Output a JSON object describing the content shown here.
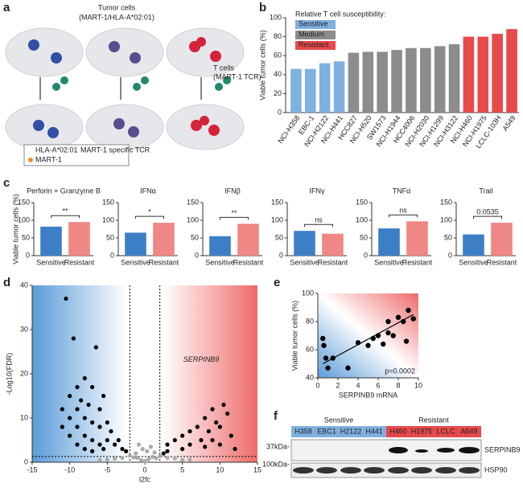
{
  "panel_labels": [
    "a",
    "b",
    "c",
    "d",
    "e",
    "f"
  ],
  "panel_a": {
    "tumor_title": "Tumor cells",
    "tumor_sub": "(MART-1/HLA-A*02:01)",
    "t_title": "T cells",
    "t_sub": "(MART-1 TCR)",
    "legend": [
      "HLA-A*02:01",
      "MART-1 specific TCR",
      "MART-1"
    ]
  },
  "panel_f": {
    "groups": [
      "Sensitive",
      "Resistant"
    ],
    "lanes": [
      "H358",
      "EBC1",
      "H2122",
      "H441",
      "H460",
      "H1975",
      "LCLC",
      "A549"
    ],
    "markers": [
      "37kDa-",
      "100kDa-"
    ],
    "proteins": [
      "SERPINB9",
      "HSP90"
    ]
  },
  "chart_data": [
    {
      "type": "bar",
      "ylabel": "Viable tumor cells (%)",
      "legend_title": "Relative T cell susceptibility:",
      "legend": "upper left",
      "categories": [
        "NCI-H358",
        "EBC-1",
        "NCI-H2122",
        "NCI-H441",
        "HCC827",
        "NCI-H520",
        "SW1573",
        "NCI-H1944",
        "HCC4006",
        "NCI-H2030",
        "NCI-H1299",
        "NCI-H3122",
        "NCI-H460",
        "NCI-H1975",
        "LCLC-103H",
        "A549"
      ],
      "series": [
        {
          "name": "Sensitive",
          "color": "#7fb0df",
          "values": [
            46,
            46,
            52,
            54,
            null,
            null,
            null,
            null,
            null,
            null,
            null,
            null,
            null,
            null,
            null,
            null
          ]
        },
        {
          "name": "Medium",
          "color": "#8c8c8c",
          "values": [
            null,
            null,
            null,
            null,
            63,
            64,
            64,
            66,
            68,
            68,
            70,
            72,
            null,
            null,
            null,
            null
          ]
        },
        {
          "name": "Resistant",
          "color": "#e8494b",
          "values": [
            null,
            null,
            null,
            null,
            null,
            null,
            null,
            null,
            null,
            null,
            null,
            null,
            80,
            80,
            83,
            88
          ]
        }
      ],
      "ylim": [
        0,
        100
      ],
      "yticks": [
        0,
        20,
        40,
        60,
        80,
        100
      ]
    },
    {
      "type": "bar",
      "title": "Perforin + Granzyme B",
      "ylabel": "Viable tumor cells (%)",
      "categories": [
        "Sensitive",
        "Resistant"
      ],
      "values": [
        82,
        95
      ],
      "colors": [
        "#3d7fc6",
        "#ef8784"
      ],
      "annotation": "**",
      "ylim": [
        0,
        150
      ],
      "yticks": [
        0,
        50,
        100,
        150
      ]
    },
    {
      "type": "bar",
      "title": "IFNα",
      "categories": [
        "Sensitive",
        "Resistant"
      ],
      "values": [
        65,
        93
      ],
      "colors": [
        "#3d7fc6",
        "#ef8784"
      ],
      "annotation": "*",
      "ylim": [
        0,
        150
      ],
      "yticks": [
        0,
        50,
        100,
        150
      ]
    },
    {
      "type": "bar",
      "title": "IFNβ",
      "categories": [
        "Sensitive",
        "Resistant"
      ],
      "values": [
        55,
        90
      ],
      "colors": [
        "#3d7fc6",
        "#ef8784"
      ],
      "annotation": "**",
      "ylim": [
        0,
        150
      ],
      "yticks": [
        0,
        50,
        100,
        150
      ]
    },
    {
      "type": "bar",
      "title": "IFNγ",
      "categories": [
        "Sensitive",
        "Resistant"
      ],
      "values": [
        70,
        62
      ],
      "colors": [
        "#3d7fc6",
        "#ef8784"
      ],
      "annotation": "ns",
      "ylim": [
        0,
        150
      ],
      "yticks": [
        0,
        50,
        100,
        150
      ]
    },
    {
      "type": "bar",
      "title": "TNFα",
      "categories": [
        "Sensitive",
        "Resistant"
      ],
      "values": [
        77,
        97
      ],
      "colors": [
        "#3d7fc6",
        "#ef8784"
      ],
      "annotation": "ns",
      "ylim": [
        0,
        150
      ],
      "yticks": [
        0,
        50,
        100,
        150
      ]
    },
    {
      "type": "bar",
      "title": "Trail",
      "categories": [
        "Sensitive",
        "Resistant"
      ],
      "values": [
        60,
        93
      ],
      "colors": [
        "#3d7fc6",
        "#ef8784"
      ],
      "annotation": "0.0535",
      "ylim": [
        0,
        150
      ],
      "yticks": [
        0,
        50,
        100,
        150
      ]
    },
    {
      "type": "scatter",
      "xlabel": "l2fc",
      "ylabel": "-Log10(FDR)",
      "annotation": "SERPINB9",
      "series": [
        {
          "color": "#aaaaaa",
          "x": [
            -1,
            -0.5,
            0.5,
            1,
            -1.5,
            1.5,
            0,
            -2,
            2,
            -3,
            3,
            -4,
            4,
            -5,
            5,
            -0.3,
            0.3,
            -1.2,
            1.3,
            -6,
            6,
            -0.8,
            0.8
          ],
          "values": [
            1,
            0.5,
            0.7,
            1.2,
            1.1,
            0.9,
            0.3,
            1.5,
            1.4,
            1,
            1,
            0.8,
            0.9,
            0.6,
            0.5,
            3,
            2.5,
            2,
            2.2,
            0.5,
            0.6,
            4,
            3.5
          ]
        },
        {
          "color": "#000000",
          "x": [
            -10.5,
            -9.5,
            -6.5,
            -8,
            -9,
            -7,
            -10,
            -8.5,
            -7.5,
            -11,
            -9,
            -6,
            -5.5,
            -10,
            -8,
            -7,
            -5,
            -11,
            -9,
            -6,
            -4.5,
            -10,
            -8,
            -7,
            -5,
            -3.5,
            -9,
            -6,
            -4,
            -3,
            -8,
            -5.5,
            -2.5,
            -7,
            10.5,
            9,
            11,
            8,
            9.5,
            7,
            10,
            6,
            8.5,
            11.5,
            5,
            7.5,
            9,
            4,
            6,
            3,
            10,
            8,
            5,
            3,
            12,
            2.5
          ],
          "values": [
            37,
            28,
            26,
            19,
            17,
            17,
            15,
            14,
            13,
            12,
            12,
            12,
            15,
            10,
            10,
            9,
            9,
            8,
            8,
            8,
            7,
            6,
            6,
            5,
            5,
            5,
            4,
            4,
            4,
            3,
            3,
            3,
            2.5,
            2.5,
            13,
            12,
            11,
            10,
            9,
            8,
            8,
            7,
            7,
            6,
            6,
            5,
            5,
            5,
            4,
            4,
            4,
            3.5,
            3,
            2.5,
            3,
            2
          ]
        }
      ],
      "x_thresholds": [
        -2,
        2
      ],
      "y_threshold": 1.3,
      "xlim": [
        -15,
        15
      ],
      "xticks": [
        -15,
        -10,
        -5,
        0,
        5,
        10,
        15
      ],
      "ylim": [
        0,
        40
      ],
      "yticks": [
        0,
        10,
        20,
        30,
        40
      ]
    },
    {
      "type": "scatter",
      "xlabel": "SERPINB9 mRNA",
      "ylabel": "Viable tumor cells (%)",
      "annotation": "p=0.0002",
      "series": [
        {
          "color": "#000000",
          "x": [
            0.5,
            0.6,
            0.8,
            1,
            1.5,
            3,
            4,
            5,
            5.5,
            6,
            6.5,
            7,
            7,
            7.5,
            8,
            8.5,
            8.8,
            9,
            9.5
          ],
          "values": [
            68,
            63,
            54,
            47,
            54,
            47,
            65,
            63,
            68,
            70,
            64,
            72,
            80,
            70,
            83,
            80,
            66,
            88,
            82
          ]
        }
      ],
      "trend": {
        "x": [
          0.5,
          9.5
        ],
        "values": [
          50,
          85
        ]
      },
      "xlim": [
        0,
        10
      ],
      "xticks": [
        0,
        2,
        4,
        6,
        8,
        10
      ],
      "ylim": [
        40,
        100
      ],
      "yticks": [
        40,
        60,
        80,
        100
      ]
    }
  ]
}
